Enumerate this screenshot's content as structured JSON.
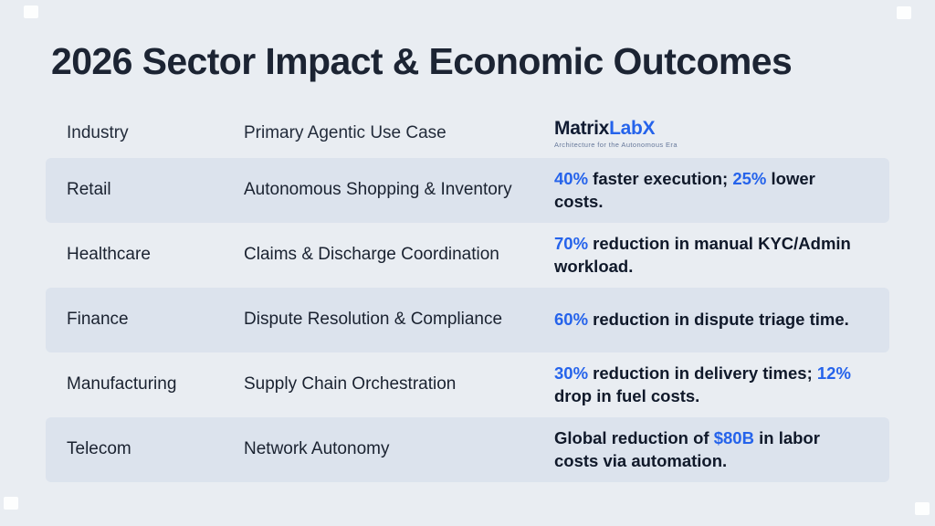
{
  "page": {
    "title": "2026 Sector Impact & Economic Outcomes",
    "accent_color": "#2563eb",
    "background_color": "#e9edf2",
    "stripe_color": "#dce3ed"
  },
  "logo": {
    "part1": "Matrix",
    "part2": "LabX",
    "tagline": "Architecture for the Autonomous Era"
  },
  "table": {
    "headers": [
      "Industry",
      "Primary Agentic Use Case"
    ],
    "rows": [
      {
        "industry": "Retail",
        "use_case": "Autonomous Shopping & Inventory",
        "striped": true,
        "outcome": [
          {
            "text": "40%",
            "accent": true
          },
          {
            "text": " faster execution; ",
            "accent": false
          },
          {
            "text": "25%",
            "accent": true
          },
          {
            "text": " lower costs.",
            "accent": false
          }
        ]
      },
      {
        "industry": "Healthcare",
        "use_case": "Claims & Discharge Coordination",
        "striped": false,
        "outcome": [
          {
            "text": "70%",
            "accent": true
          },
          {
            "text": " reduction in manual KYC/Admin workload.",
            "accent": false
          }
        ]
      },
      {
        "industry": "Finance",
        "use_case": "Dispute Resolution & Compliance",
        "striped": true,
        "outcome": [
          {
            "text": "60%",
            "accent": true
          },
          {
            "text": " reduction in dispute triage time.",
            "accent": false
          }
        ]
      },
      {
        "industry": "Manufacturing",
        "use_case": "Supply Chain Orchestration",
        "striped": false,
        "outcome": [
          {
            "text": "30%",
            "accent": true
          },
          {
            "text": " reduction in delivery times; ",
            "accent": false
          },
          {
            "text": "12%",
            "accent": true
          },
          {
            "text": " drop in fuel costs.",
            "accent": false
          }
        ]
      },
      {
        "industry": "Telecom",
        "use_case": "Network Autonomy",
        "striped": true,
        "outcome": [
          {
            "text": "Global reduction of ",
            "accent": false
          },
          {
            "text": "$80B",
            "accent": true
          },
          {
            "text": " in labor costs via automation.",
            "accent": false
          }
        ]
      }
    ]
  }
}
